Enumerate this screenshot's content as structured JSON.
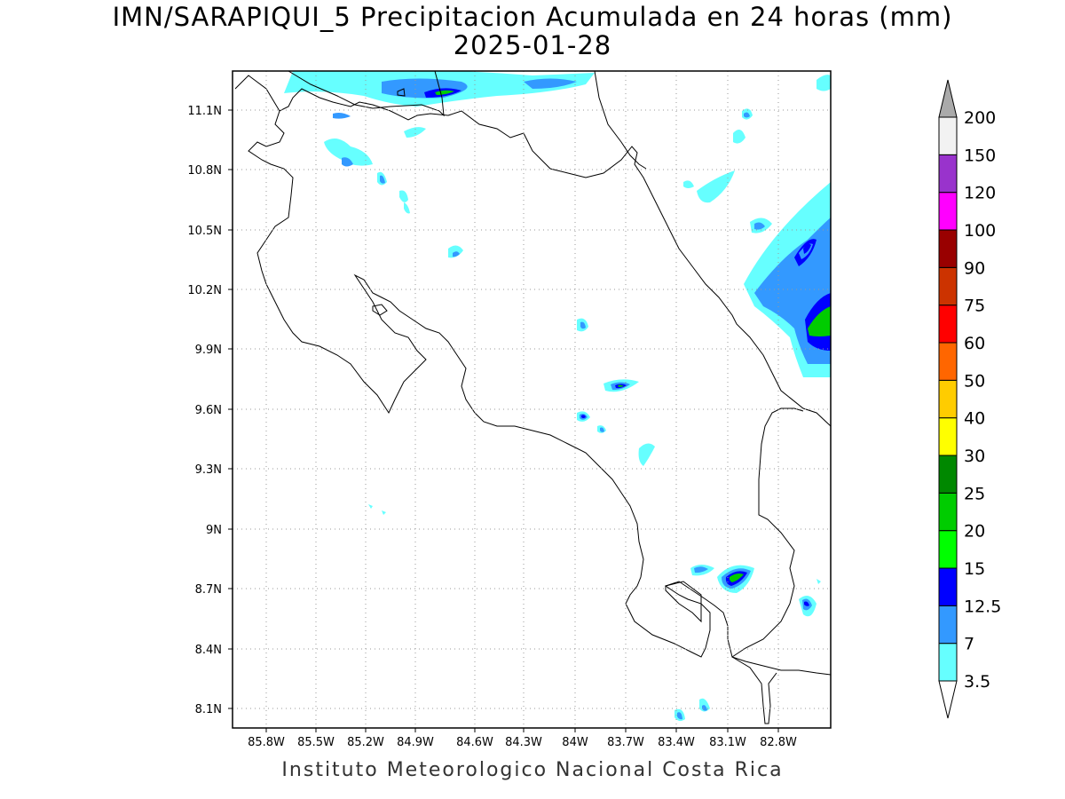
{
  "title": "IMN/SARAPIQUI_5 Precipitacion Acumulada en 24 horas (mm)",
  "date": "2025-01-28",
  "footer": "Instituto Meteorologico Nacional Costa Rica",
  "map": {
    "lat_labels": [
      "11.1N",
      "10.8N",
      "10.5N",
      "10.2N",
      "9.9N",
      "9.6N",
      "9.3N",
      "9N",
      "8.7N",
      "8.4N",
      "8.1N"
    ],
    "lon_labels": [
      "85.8W",
      "85.5W",
      "85.2W",
      "84.9W",
      "84.6W",
      "84.3W",
      "84W",
      "83.7W",
      "83.4W",
      "83.1W",
      "82.8W"
    ],
    "grid": "dotted"
  },
  "colorbar": {
    "levels": [
      "3.5",
      "7",
      "12.5",
      "15",
      "20",
      "25",
      "30",
      "40",
      "50",
      "60",
      "75",
      "90",
      "100",
      "120",
      "150",
      "200"
    ],
    "colors": [
      "#ffffff",
      "#66ffff",
      "#3399ff",
      "#0000ff",
      "#00ff00",
      "#00cc00",
      "#008800",
      "#ffff00",
      "#ffcc00",
      "#ff6600",
      "#ff0000",
      "#cc3300",
      "#990000",
      "#ff00ff",
      "#9933cc",
      "#f2f2f2",
      "#aaaaaa"
    ]
  }
}
